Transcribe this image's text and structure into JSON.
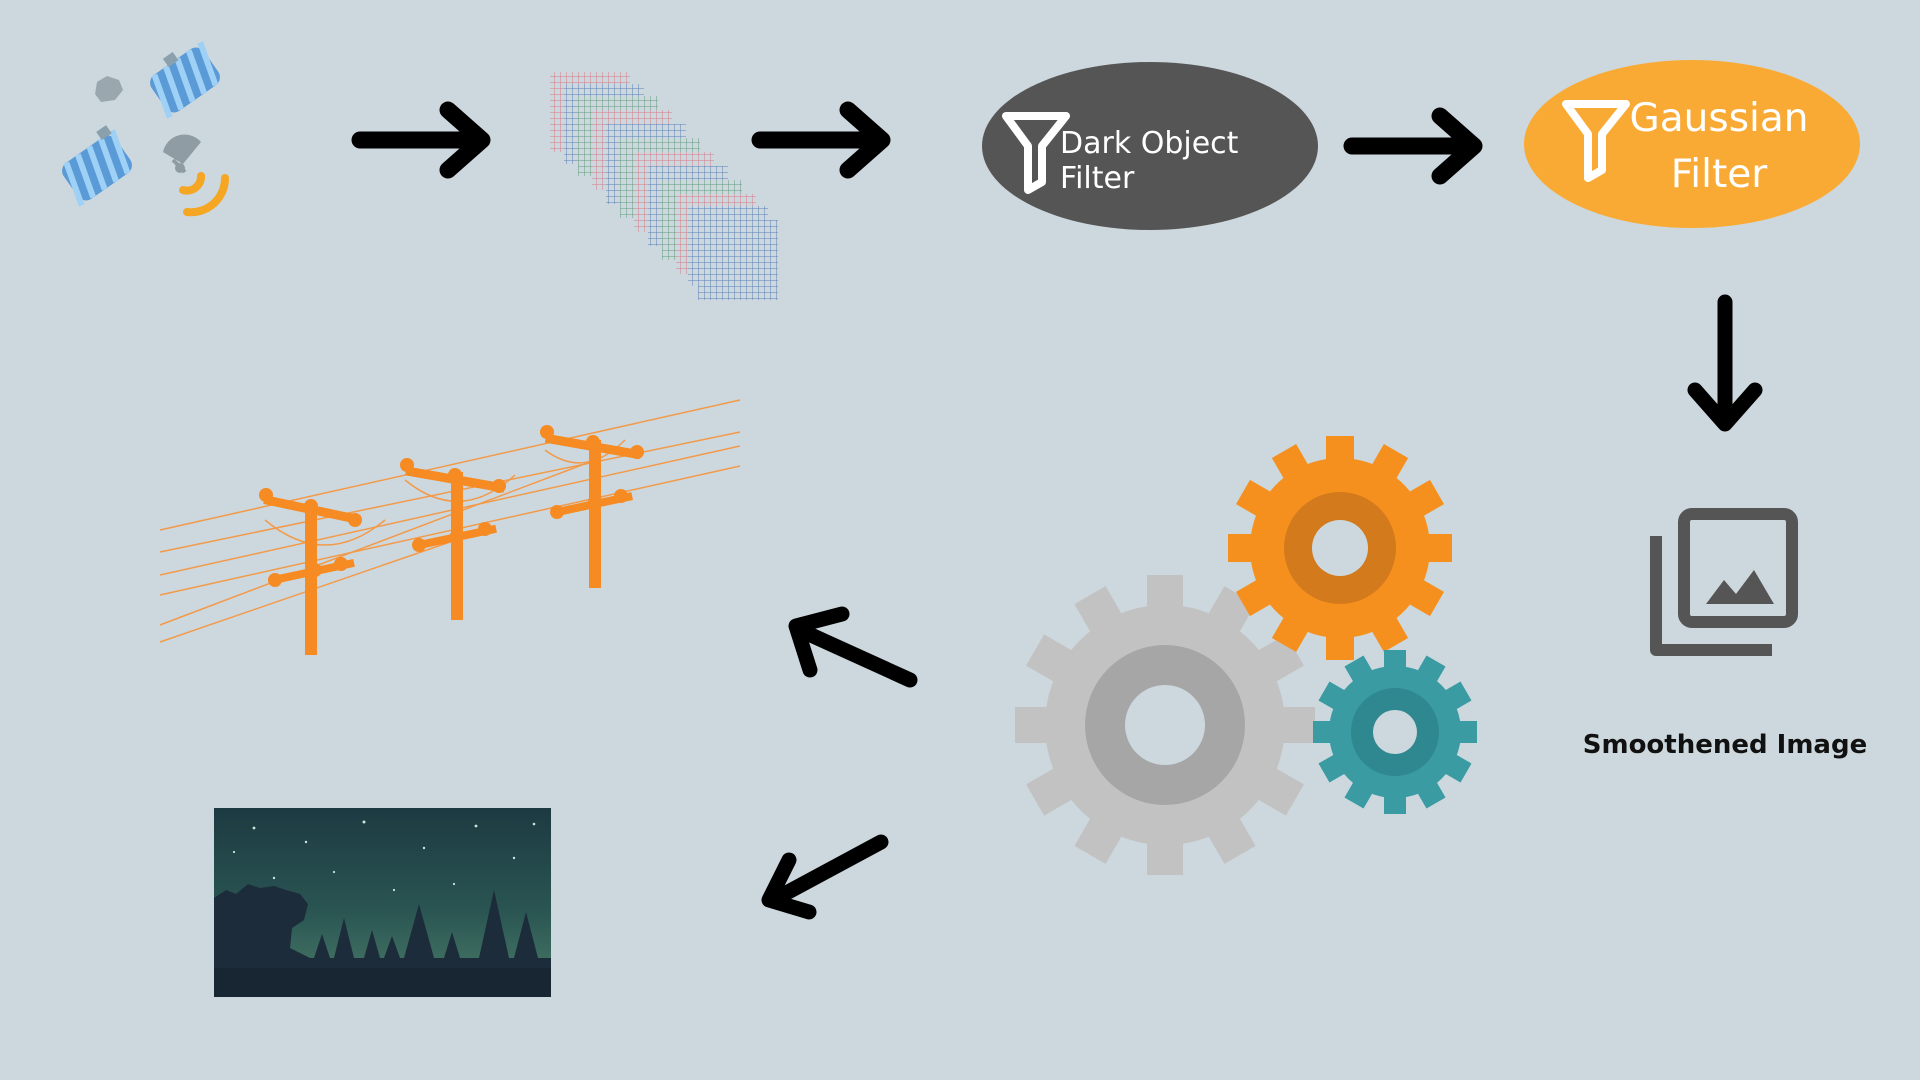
{
  "nodes": {
    "dark_object_filter": {
      "label": "Dark Object Filter",
      "fill": "#555555"
    },
    "gaussian_filter": {
      "label_line1": "Gaussian",
      "label_line2": "Filter",
      "fill": "#f9aa35"
    },
    "smoothened_image": {
      "label": "Smoothened Image"
    }
  },
  "icons": [
    "satellite-icon",
    "raster-band-stack-icon",
    "filter-funnel-icon",
    "image-gallery-icon",
    "gears-icon",
    "power-lines-icon",
    "night-forest-image"
  ],
  "colors": {
    "background": "#cdd8de",
    "arrow": "#000000",
    "orange": "#f5901e",
    "teal": "#3a9ba3",
    "gray_gear": "#c2c2c2"
  }
}
